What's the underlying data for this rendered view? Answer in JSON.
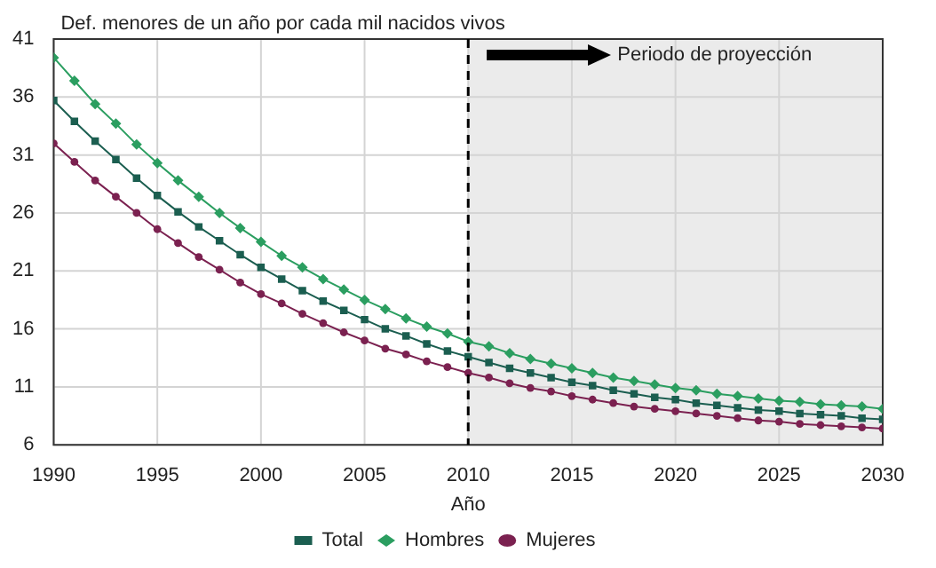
{
  "chart_data": {
    "type": "line",
    "ylabel": "Def. menores de un año por cada mil nacidos vivos",
    "xlabel": "Año",
    "x": [
      1990,
      1991,
      1992,
      1993,
      1994,
      1995,
      1996,
      1997,
      1998,
      1999,
      2000,
      2001,
      2002,
      2003,
      2004,
      2005,
      2006,
      2007,
      2008,
      2009,
      2010,
      2011,
      2012,
      2013,
      2014,
      2015,
      2016,
      2017,
      2018,
      2019,
      2020,
      2021,
      2022,
      2023,
      2024,
      2025,
      2026,
      2027,
      2028,
      2029,
      2030
    ],
    "series": [
      {
        "name": "Total",
        "color": "#1b5e50",
        "marker": "square",
        "values": [
          35.7,
          33.9,
          32.2,
          30.6,
          29.0,
          27.5,
          26.1,
          24.8,
          23.6,
          22.4,
          21.3,
          20.3,
          19.3,
          18.4,
          17.6,
          16.8,
          16.0,
          15.4,
          14.7,
          14.1,
          13.6,
          13.1,
          12.6,
          12.2,
          11.8,
          11.4,
          11.1,
          10.7,
          10.4,
          10.1,
          9.9,
          9.6,
          9.4,
          9.2,
          9.0,
          8.9,
          8.7,
          8.6,
          8.5,
          8.3,
          8.2
        ]
      },
      {
        "name": "Hombres",
        "color": "#2b9e60",
        "marker": "diamond",
        "values": [
          39.4,
          37.4,
          35.4,
          33.7,
          31.9,
          30.3,
          28.8,
          27.4,
          26.0,
          24.7,
          23.5,
          22.3,
          21.3,
          20.3,
          19.4,
          18.5,
          17.7,
          16.9,
          16.2,
          15.6,
          14.9,
          14.5,
          13.9,
          13.4,
          13.0,
          12.6,
          12.2,
          11.8,
          11.5,
          11.2,
          10.9,
          10.7,
          10.4,
          10.2,
          10.0,
          9.8,
          9.7,
          9.5,
          9.4,
          9.3,
          9.1
        ]
      },
      {
        "name": "Mujeres",
        "color": "#7b2150",
        "marker": "circle",
        "values": [
          32.0,
          30.4,
          28.8,
          27.4,
          26.0,
          24.6,
          23.4,
          22.2,
          21.1,
          20.0,
          19.0,
          18.2,
          17.3,
          16.5,
          15.7,
          15.0,
          14.3,
          13.8,
          13.2,
          12.7,
          12.2,
          11.8,
          11.3,
          10.9,
          10.6,
          10.2,
          9.9,
          9.6,
          9.3,
          9.1,
          8.9,
          8.7,
          8.5,
          8.3,
          8.1,
          8.0,
          7.8,
          7.7,
          7.6,
          7.5,
          7.4
        ]
      }
    ],
    "xlim": [
      1990,
      2030
    ],
    "xticks": [
      1990,
      1995,
      2000,
      2005,
      2010,
      2015,
      2020,
      2025,
      2030
    ],
    "ylim": [
      6,
      41
    ],
    "yticks": [
      6,
      11,
      16,
      21,
      26,
      31,
      36,
      41
    ],
    "ref_lines": [
      {
        "axis": "x",
        "value": 2010,
        "color": "#000000",
        "line_style": "dashed"
      }
    ],
    "bands": [
      {
        "axis": "x",
        "from": 2010,
        "to": 2030,
        "label": "Periodo de proyección",
        "color": "#ebebeb"
      }
    ],
    "grid": true,
    "legend": "bottom",
    "line_style": "solid"
  }
}
